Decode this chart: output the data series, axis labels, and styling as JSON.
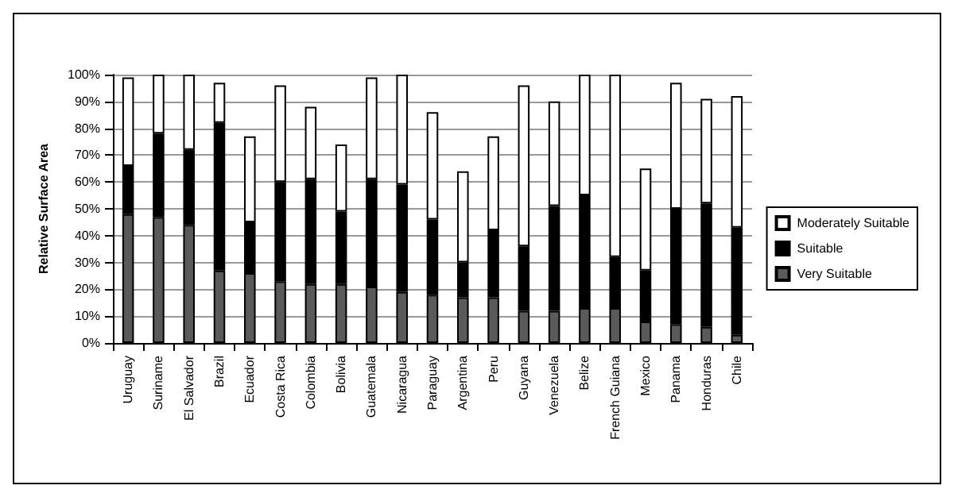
{
  "chart_data": {
    "type": "bar",
    "stacked": true,
    "ylabel": "Relative Surface Area",
    "categories": [
      "Uruguay",
      "Suriname",
      "El Salvador",
      "Brazil",
      "Ecuador",
      "Costa Rica",
      "Colombia",
      "Bolivia",
      "Guatemala",
      "Nicaragua",
      "Paraguay",
      "Argentina",
      "Peru",
      "Guyana",
      "Venezuela",
      "Belize",
      "French Guiana",
      "Mexico",
      "Panama",
      "Honduras",
      "Chile"
    ],
    "series": [
      {
        "name": "Very Suitable",
        "color": "#5a5a5a",
        "values": [
          48,
          47,
          44,
          27,
          26,
          23,
          22,
          22,
          21,
          19,
          18,
          17,
          17,
          12,
          12,
          13,
          13,
          8,
          7,
          6,
          3
        ]
      },
      {
        "name": "Suitable",
        "color": "#000000",
        "values": [
          18,
          31,
          28,
          55,
          19,
          37,
          39,
          27,
          40,
          40,
          28,
          13,
          25,
          24,
          39,
          42,
          19,
          19,
          43,
          46,
          40
        ]
      },
      {
        "name": "Moderately Suitable",
        "color": "#ffffff",
        "values": [
          33,
          22,
          28,
          15,
          32,
          36,
          27,
          25,
          38,
          41,
          40,
          34,
          35,
          60,
          39,
          45,
          68,
          38,
          47,
          39,
          49
        ]
      }
    ],
    "ylim": [
      0,
      100
    ],
    "yticks": [
      {
        "value": 0,
        "label": "0%"
      },
      {
        "value": 10,
        "label": "10%"
      },
      {
        "value": 20,
        "label": "20%"
      },
      {
        "value": 30,
        "label": "30%"
      },
      {
        "value": 40,
        "label": "40%"
      },
      {
        "value": 50,
        "label": "50%"
      },
      {
        "value": 60,
        "label": "60%"
      },
      {
        "value": 70,
        "label": "70%"
      },
      {
        "value": 80,
        "label": "80%"
      },
      {
        "value": 90,
        "label": "90%"
      },
      {
        "value": 100,
        "label": "100%"
      }
    ],
    "grid": "y",
    "legend": "right"
  }
}
